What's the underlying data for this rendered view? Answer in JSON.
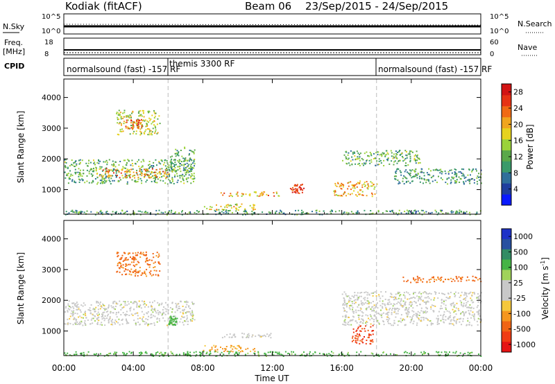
{
  "header": {
    "station": "Kodiak (fitACF)",
    "beam": "Beam 06",
    "date_range": "23/Sep/2015 - 24/Sep/2015"
  },
  "strip_panels": {
    "nsky_label": "N.Sky",
    "nsky_ticks": [
      "10^5",
      "10^0"
    ],
    "nsearch_label": "N.Search",
    "nsearch_ticks": [
      "10^5",
      "10^0"
    ],
    "freq_label": "Freq.",
    "freq_unit": "[MHz]",
    "freq_ticks": [
      "18",
      "8"
    ],
    "nave_label": "Nave",
    "nave_ticks": [
      "60",
      "0"
    ],
    "cpid_label": "CPID",
    "cpid_segments": [
      {
        "start": 0,
        "end": 6,
        "label": "normalsound (fast) -157 RF"
      },
      {
        "start": 6,
        "end": 18,
        "label": "themis 3300 RF"
      },
      {
        "start": 18,
        "end": 24,
        "label": "normalsound (fast) -157 RF"
      }
    ]
  },
  "colors": {
    "power_scale": [
      "#0a1aff",
      "#1f3f9e",
      "#2f6f9a",
      "#3a9a6a",
      "#5aa84a",
      "#9ad23a",
      "#e6d21e",
      "#f0a51e",
      "#f06a14",
      "#e63214",
      "#d21414"
    ],
    "velocity_scale": [
      "#e61414",
      "#f03c14",
      "#f06414",
      "#f5961e",
      "#f5c83c",
      "#c8c8c8",
      "#c8c8c8",
      "#a0d25a",
      "#46b446",
      "#328c64",
      "#2850a0",
      "#1e32c8"
    ]
  },
  "chart_data": [
    {
      "type": "heatmap",
      "title": "Power",
      "xlabel": "Time UT",
      "ylabel": "Slant Range [km]",
      "xlim": [
        0,
        24
      ],
      "ylim": [
        200,
        4600
      ],
      "xticks": [
        "00:00",
        "04:00",
        "08:00",
        "12:00",
        "16:00",
        "20:00",
        "00:00"
      ],
      "yticks": [
        1000,
        2000,
        3000,
        4000
      ],
      "colorbar_label": "Power [dB]",
      "colorbar_ticks": [
        4,
        8,
        12,
        16,
        20,
        24,
        28
      ],
      "colorbar_range": [
        0,
        30
      ],
      "features": [
        {
          "t0": 0,
          "t1": 7.5,
          "r0": 1200,
          "r1": 2000,
          "v": 12
        },
        {
          "t0": 2.0,
          "t1": 6.0,
          "r0": 1400,
          "r1": 1700,
          "v": 22
        },
        {
          "t0": 3.0,
          "t1": 5.5,
          "r0": 2800,
          "r1": 3600,
          "v": 16
        },
        {
          "t0": 3.5,
          "t1": 4.5,
          "r0": 3000,
          "r1": 3300,
          "v": 24
        },
        {
          "t0": 6.0,
          "t1": 7.5,
          "r0": 1600,
          "r1": 2400,
          "v": 12
        },
        {
          "t0": 9.0,
          "t1": 12.5,
          "r0": 800,
          "r1": 950,
          "v": 20
        },
        {
          "t0": 8.0,
          "t1": 11.0,
          "r0": 350,
          "r1": 550,
          "v": 18
        },
        {
          "t0": 13.0,
          "t1": 13.8,
          "r0": 900,
          "r1": 1200,
          "v": 26
        },
        {
          "t0": 15.5,
          "t1": 18.0,
          "r0": 800,
          "r1": 1300,
          "v": 20
        },
        {
          "t0": 16.0,
          "t1": 20.5,
          "r0": 1800,
          "r1": 2300,
          "v": 12
        },
        {
          "t0": 19.0,
          "t1": 24,
          "r0": 1200,
          "r1": 1700,
          "v": 10
        },
        {
          "t0": 0,
          "t1": 24,
          "r0": 200,
          "r1": 350,
          "v": 10
        }
      ]
    },
    {
      "type": "heatmap",
      "title": "Velocity",
      "xlabel": "Time UT",
      "ylabel": "Slant Range [km]",
      "xlim": [
        0,
        24
      ],
      "ylim": [
        200,
        4600
      ],
      "xticks": [
        "00:00",
        "04:00",
        "08:00",
        "12:00",
        "16:00",
        "20:00",
        "00:00"
      ],
      "yticks": [
        1000,
        2000,
        3000,
        4000
      ],
      "colorbar_label": "Velocity [m s^-1]",
      "colorbar_ticks": [
        "1000",
        "500",
        "100",
        "25",
        "-25",
        "-100",
        "-500",
        "-1000"
      ],
      "features": [
        {
          "t0": 0,
          "t1": 7.5,
          "r0": 1200,
          "r1": 2000,
          "v": 0
        },
        {
          "t0": 3.0,
          "t1": 5.5,
          "r0": 2800,
          "r1": 3600,
          "v": -300
        },
        {
          "t0": 6.0,
          "t1": 6.5,
          "r0": 1200,
          "r1": 1500,
          "v": 150
        },
        {
          "t0": 9.0,
          "t1": 12.5,
          "r0": 800,
          "r1": 950,
          "v": 0
        },
        {
          "t0": 8.0,
          "t1": 11.0,
          "r0": 350,
          "r1": 550,
          "v": -150
        },
        {
          "t0": 16.5,
          "t1": 17.8,
          "r0": 600,
          "r1": 1200,
          "v": -700
        },
        {
          "t0": 16.0,
          "t1": 24,
          "r0": 1200,
          "r1": 2300,
          "v": 0
        },
        {
          "t0": 19.5,
          "t1": 24,
          "r0": 2600,
          "r1": 2800,
          "v": -300
        },
        {
          "t0": 0,
          "t1": 24,
          "r0": 200,
          "r1": 350,
          "v": 150
        }
      ]
    }
  ]
}
